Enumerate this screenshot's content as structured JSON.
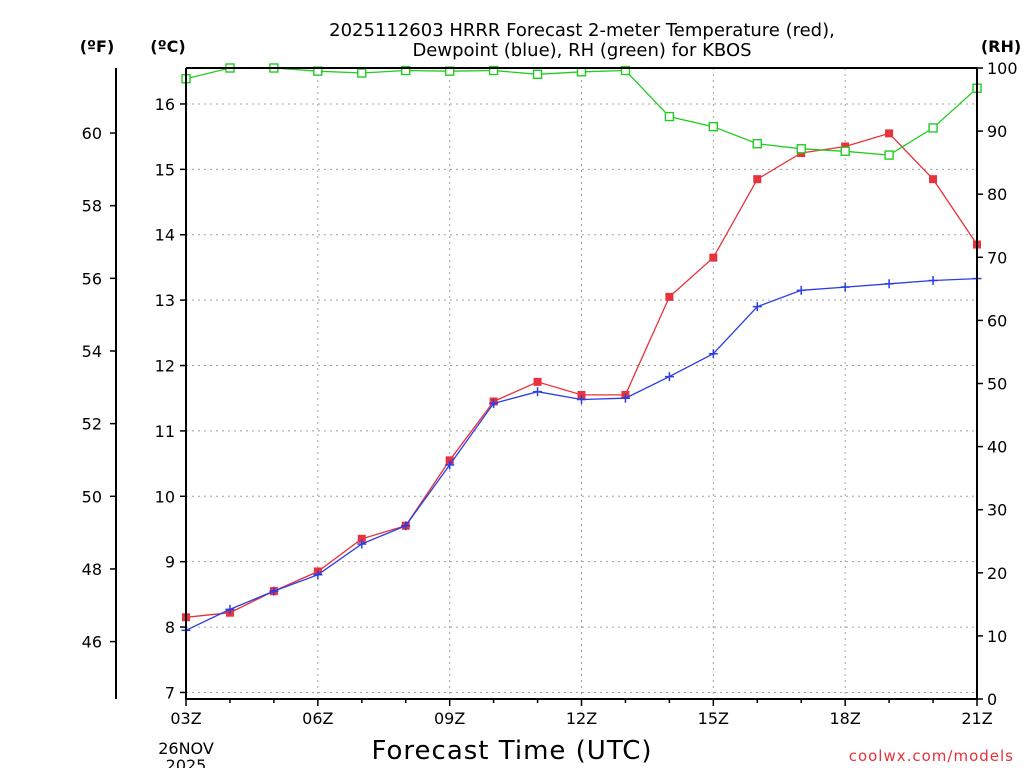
{
  "chart_data": {
    "type": "line",
    "title": "2025112603 HRRR Forecast 2-meter Temperature (red),",
    "subtitle": "Dewpoint (blue), RH (green) for KBOS",
    "xlabel": "Forecast Time (UTC)",
    "credit": "coolwx.com/models",
    "x_start_date": [
      "26NOV",
      "2025"
    ],
    "x_hours": [
      3,
      4,
      5,
      6,
      7,
      8,
      9,
      10,
      11,
      12,
      13,
      14,
      15,
      16,
      17,
      18,
      19,
      20,
      21
    ],
    "x_ticks": [
      {
        "hour": 3,
        "label": "03Z"
      },
      {
        "hour": 6,
        "label": "06Z"
      },
      {
        "hour": 9,
        "label": "09Z"
      },
      {
        "hour": 12,
        "label": "12Z"
      },
      {
        "hour": 15,
        "label": "15Z"
      },
      {
        "hour": 18,
        "label": "18Z"
      },
      {
        "hour": 21,
        "label": "21Z"
      }
    ],
    "xlim": [
      3,
      21
    ],
    "celsius_axis": {
      "unit_label": "(ºC)",
      "ylim": [
        6.9,
        16.55
      ],
      "ticks": [
        7,
        8,
        9,
        10,
        11,
        12,
        13,
        14,
        15,
        16
      ]
    },
    "fahrenheit_axis": {
      "unit_label": "(ºF)",
      "ticks": [
        46,
        48,
        50,
        52,
        54,
        56,
        58,
        60
      ]
    },
    "rh_axis": {
      "unit_label": "(RH)",
      "ylim": [
        0,
        100
      ],
      "ticks": [
        0,
        10,
        20,
        30,
        40,
        50,
        60,
        70,
        80,
        90,
        100
      ]
    },
    "series": [
      {
        "name": "Temperature",
        "axis": "celsius",
        "color": "#e8323c",
        "marker": "filled-square",
        "values": [
          8.15,
          8.22,
          8.55,
          8.85,
          9.35,
          9.55,
          10.55,
          11.45,
          11.75,
          11.55,
          11.55,
          13.05,
          13.65,
          14.85,
          15.25,
          15.35,
          15.55,
          14.85,
          13.85
        ]
      },
      {
        "name": "Dewpoint",
        "axis": "celsius",
        "color": "#2a3de6",
        "marker": "plus",
        "values": [
          7.95,
          8.27,
          8.55,
          8.8,
          9.27,
          9.55,
          10.48,
          11.42,
          11.6,
          11.48,
          11.5,
          11.83,
          12.18,
          12.9,
          13.15,
          13.2,
          13.25,
          13.3,
          13.33
        ]
      },
      {
        "name": "RH",
        "axis": "rh",
        "color": "#22cc22",
        "marker": "open-square",
        "values": [
          98.3,
          100,
          100,
          99.5,
          99.2,
          99.6,
          99.5,
          99.6,
          99,
          99.4,
          99.6,
          92.3,
          90.7,
          88,
          87.2,
          86.8,
          86.2,
          90.5,
          96.8
        ]
      }
    ]
  }
}
